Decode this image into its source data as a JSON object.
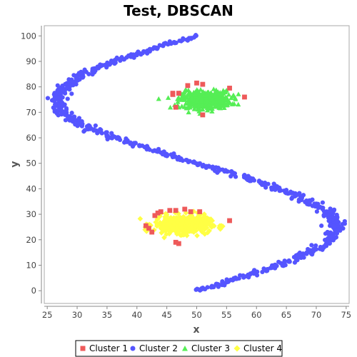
{
  "chart_data": {
    "type": "scatter",
    "title": "Test, DBSCAN",
    "xlabel": "x",
    "ylabel": "y",
    "xlim": [
      24.5,
      75.5
    ],
    "ylim": [
      -5,
      104
    ],
    "xticks": [
      25,
      30,
      35,
      40,
      45,
      50,
      55,
      60,
      65,
      70,
      75
    ],
    "yticks": [
      0,
      10,
      20,
      30,
      40,
      50,
      60,
      70,
      80,
      90,
      100
    ],
    "legend_position": "bottom",
    "series": [
      {
        "name": "Cluster 1",
        "marker": "square",
        "color": "#ee5a5a",
        "points": [
          [
            46,
            77.5
          ],
          [
            46,
            77
          ],
          [
            47,
            77.5
          ],
          [
            48.5,
            80.5
          ],
          [
            50,
            81.5
          ],
          [
            51,
            81
          ],
          [
            55.5,
            79.5
          ],
          [
            58,
            76
          ],
          [
            46.5,
            72
          ],
          [
            51,
            69
          ],
          [
            41.5,
            25.5
          ],
          [
            42,
            24.5
          ],
          [
            42.5,
            23
          ],
          [
            43,
            29.5
          ],
          [
            43.5,
            30.5
          ],
          [
            44,
            31
          ],
          [
            45.5,
            31.5
          ],
          [
            46.5,
            31.5
          ],
          [
            48,
            32
          ],
          [
            49,
            31
          ],
          [
            50.5,
            31
          ],
          [
            55.5,
            27.5
          ],
          [
            46.5,
            19
          ],
          [
            47,
            18.5
          ]
        ]
      },
      {
        "name": "Cluster 2",
        "marker": "circle",
        "color": "#5555ff",
        "curve": "s-curve",
        "x_range": [
          26.7,
          73.3
        ],
        "y_range": [
          0,
          100
        ]
      },
      {
        "name": "Cluster 3",
        "marker": "triangle",
        "color": "#55ee55",
        "blob": {
          "center": [
            51.5,
            75
          ],
          "spread": [
            3.8,
            3.2
          ],
          "count": 420
        }
      },
      {
        "name": "Cluster 4",
        "marker": "diamond",
        "color": "#ffff44",
        "blob": {
          "center": [
            47.5,
            26
          ],
          "spread": [
            4.2,
            3.2
          ],
          "count": 420
        }
      }
    ]
  },
  "colors": {
    "plot_background": "#ffffff",
    "plot_border": "#aaaaaa",
    "axis_line": "#888888"
  }
}
